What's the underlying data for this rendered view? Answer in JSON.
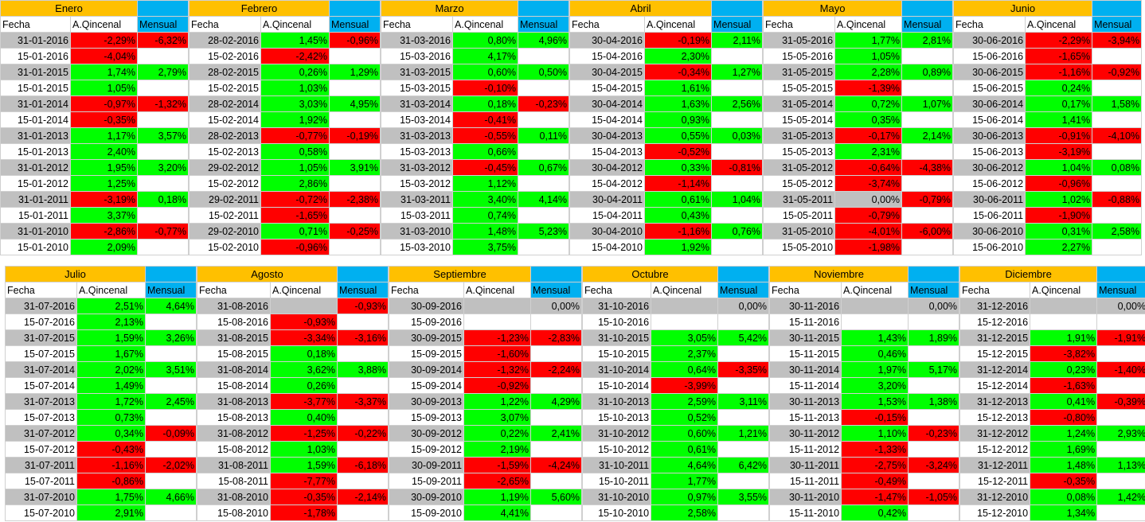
{
  "headers": {
    "fecha": "Fecha",
    "quincenal": "A.Qincenal",
    "mensual": "Mensual"
  },
  "rows": [
    [
      {
        "name": "Enero",
        "rows": [
          [
            "31-01-2016",
            "-2,29%",
            "-6,32%"
          ],
          [
            "15-01-2016",
            "-4,04%",
            ""
          ],
          [
            "31-01-2015",
            "1,74%",
            "2,79%"
          ],
          [
            "15-01-2015",
            "1,05%",
            ""
          ],
          [
            "31-01-2014",
            "-0,97%",
            "-1,32%"
          ],
          [
            "15-01-2014",
            "-0,35%",
            ""
          ],
          [
            "31-01-2013",
            "1,17%",
            "3,57%"
          ],
          [
            "15-01-2013",
            "2,40%",
            ""
          ],
          [
            "31-01-2012",
            "1,95%",
            "3,20%"
          ],
          [
            "15-01-2012",
            "1,25%",
            ""
          ],
          [
            "31-01-2011",
            "-3,19%",
            "0,18%"
          ],
          [
            "15-01-2011",
            "3,37%",
            ""
          ],
          [
            "31-01-2010",
            "-2,86%",
            "-0,77%"
          ],
          [
            "15-01-2010",
            "2,09%",
            ""
          ]
        ]
      },
      {
        "name": "Febrero",
        "rows": [
          [
            "28-02-2016",
            "1,45%",
            "-0,96%"
          ],
          [
            "15-02-2016",
            "-2,42%",
            ""
          ],
          [
            "28-02-2015",
            "0,26%",
            "1,29%"
          ],
          [
            "15-02-2015",
            "1,03%",
            ""
          ],
          [
            "28-02-2014",
            "3,03%",
            "4,95%"
          ],
          [
            "15-02-2014",
            "1,92%",
            ""
          ],
          [
            "28-02-2013",
            "-0,77%",
            "-0,19%"
          ],
          [
            "15-02-2013",
            "0,58%",
            ""
          ],
          [
            "29-02-2012",
            "1,05%",
            "3,91%"
          ],
          [
            "15-02-2012",
            "2,86%",
            ""
          ],
          [
            "29-02-2011",
            "-0,72%",
            "-2,38%"
          ],
          [
            "15-02-2011",
            "-1,65%",
            ""
          ],
          [
            "29-02-2010",
            "0,71%",
            "-0,25%"
          ],
          [
            "15-02-2010",
            "-0,96%",
            ""
          ]
        ]
      },
      {
        "name": "Marzo",
        "rows": [
          [
            "31-03-2016",
            "0,80%",
            "4,96%"
          ],
          [
            "15-03-2016",
            "4,17%",
            ""
          ],
          [
            "31-03-2015",
            "0,60%",
            "0,50%"
          ],
          [
            "15-03-2015",
            "-0,10%",
            ""
          ],
          [
            "31-03-2014",
            "0,18%",
            "-0,23%"
          ],
          [
            "15-03-2014",
            "-0,41%",
            ""
          ],
          [
            "31-03-2013",
            "-0,55%",
            "0,11%"
          ],
          [
            "15-03-2013",
            "0,66%",
            ""
          ],
          [
            "31-03-2012",
            "-0,45%",
            "0,67%"
          ],
          [
            "15-03-2012",
            "1,12%",
            ""
          ],
          [
            "31-03-2011",
            "3,40%",
            "4,14%"
          ],
          [
            "15-03-2011",
            "0,74%",
            ""
          ],
          [
            "31-03-2010",
            "1,48%",
            "5,23%"
          ],
          [
            "15-03-2010",
            "3,75%",
            ""
          ]
        ]
      },
      {
        "name": "Abril",
        "rows": [
          [
            "30-04-2016",
            "-0,19%",
            "2,11%"
          ],
          [
            "15-04-2016",
            "2,30%",
            ""
          ],
          [
            "30-04-2015",
            "-0,34%",
            "1,27%"
          ],
          [
            "15-04-2015",
            "1,61%",
            ""
          ],
          [
            "30-04-2014",
            "1,63%",
            "2,56%"
          ],
          [
            "15-04-2014",
            "0,93%",
            ""
          ],
          [
            "30-04-2013",
            "0,55%",
            "0,03%"
          ],
          [
            "15-04-2013",
            "-0,52%",
            ""
          ],
          [
            "30-04-2012",
            "0,33%",
            "-0,81%"
          ],
          [
            "15-04-2012",
            "-1,14%",
            ""
          ],
          [
            "30-04-2011",
            "0,61%",
            "1,04%"
          ],
          [
            "15-04-2011",
            "0,43%",
            ""
          ],
          [
            "30-04-2010",
            "-1,16%",
            "0,76%"
          ],
          [
            "15-04-2010",
            "1,92%",
            ""
          ]
        ]
      },
      {
        "name": "Mayo",
        "rows": [
          [
            "31-05-2016",
            "1,77%",
            "2,81%"
          ],
          [
            "15-05-2016",
            "1,05%",
            ""
          ],
          [
            "31-05-2015",
            "2,28%",
            "0,89%"
          ],
          [
            "15-05-2015",
            "-1,39%",
            ""
          ],
          [
            "31-05-2014",
            "0,72%",
            "1,07%"
          ],
          [
            "15-05-2014",
            "0,35%",
            ""
          ],
          [
            "31-05-2013",
            "-0,17%",
            "2,14%"
          ],
          [
            "15-05-2013",
            "2,31%",
            ""
          ],
          [
            "31-05-2012",
            "-0,64%",
            "-4,38%"
          ],
          [
            "15-05-2012",
            "-3,74%",
            ""
          ],
          [
            "31-05-2011",
            "0,00%",
            "-0,79%"
          ],
          [
            "15-05-2011",
            "-0,79%",
            ""
          ],
          [
            "31-05-2010",
            "-4,01%",
            "-6,00%"
          ],
          [
            "15-05-2010",
            "-1,98%",
            ""
          ]
        ]
      },
      {
        "name": "Junio",
        "rows": [
          [
            "30-06-2016",
            "-2,29%",
            "-3,94%"
          ],
          [
            "15-06-2016",
            "-1,65%",
            ""
          ],
          [
            "30-06-2015",
            "-1,16%",
            "-0,92%"
          ],
          [
            "15-06-2015",
            "0,24%",
            ""
          ],
          [
            "30-06-2014",
            "0,17%",
            "1,58%"
          ],
          [
            "15-06-2014",
            "1,41%",
            ""
          ],
          [
            "30-06-2013",
            "-0,91%",
            "-4,10%"
          ],
          [
            "15-06-2013",
            "-3,19%",
            ""
          ],
          [
            "30-06-2012",
            "1,04%",
            "0,08%"
          ],
          [
            "15-06-2012",
            "-0,96%",
            ""
          ],
          [
            "30-06-2011",
            "1,02%",
            "-0,88%"
          ],
          [
            "15-06-2011",
            "-1,90%",
            ""
          ],
          [
            "30-06-2010",
            "0,31%",
            "2,58%"
          ],
          [
            "15-06-2010",
            "2,27%",
            ""
          ]
        ]
      }
    ],
    [
      {
        "name": "Julio",
        "rows": [
          [
            "31-07-2016",
            "2,51%",
            "4,64%"
          ],
          [
            "15-07-2016",
            "2,13%",
            ""
          ],
          [
            "31-07-2015",
            "1,59%",
            "3,26%"
          ],
          [
            "15-07-2015",
            "1,67%",
            ""
          ],
          [
            "31-07-2014",
            "2,02%",
            "3,51%"
          ],
          [
            "15-07-2014",
            "1,49%",
            ""
          ],
          [
            "31-07-2013",
            "1,72%",
            "2,45%"
          ],
          [
            "15-07-2013",
            "0,73%",
            ""
          ],
          [
            "31-07-2012",
            "0,34%",
            "-0,09%"
          ],
          [
            "15-07-2012",
            "-0,43%",
            ""
          ],
          [
            "31-07-2011",
            "-1,16%",
            "-2,02%"
          ],
          [
            "15-07-2011",
            "-0,86%",
            ""
          ],
          [
            "31-07-2010",
            "1,75%",
            "4,66%"
          ],
          [
            "15-07-2010",
            "2,91%",
            ""
          ]
        ]
      },
      {
        "name": "Agosto",
        "rows": [
          [
            "31-08-2016",
            "",
            "-0,93%"
          ],
          [
            "15-08-2016",
            "-0,93%",
            ""
          ],
          [
            "31-08-2015",
            "-3,34%",
            "-3,16%"
          ],
          [
            "15-08-2015",
            "0,18%",
            ""
          ],
          [
            "31-08-2014",
            "3,62%",
            "3,88%"
          ],
          [
            "15-08-2014",
            "0,26%",
            ""
          ],
          [
            "31-08-2013",
            "-3,77%",
            "-3,37%"
          ],
          [
            "15-08-2013",
            "0,40%",
            ""
          ],
          [
            "31-08-2012",
            "-1,25%",
            "-0,22%"
          ],
          [
            "15-08-2012",
            "1,03%",
            ""
          ],
          [
            "31-08-2011",
            "1,59%",
            "-6,18%"
          ],
          [
            "15-08-2011",
            "-7,77%",
            ""
          ],
          [
            "31-08-2010",
            "-0,35%",
            "-2,14%"
          ],
          [
            "15-08-2010",
            "-1,78%",
            ""
          ]
        ]
      },
      {
        "name": "Septiembre",
        "rows": [
          [
            "30-09-2016",
            "",
            "0,00%"
          ],
          [
            "15-09-2016",
            "",
            ""
          ],
          [
            "30-09-2015",
            "-1,23%",
            "-2,83%"
          ],
          [
            "15-09-2015",
            "-1,60%",
            ""
          ],
          [
            "30-09-2014",
            "-1,32%",
            "-2,24%"
          ],
          [
            "15-09-2014",
            "-0,92%",
            ""
          ],
          [
            "30-09-2013",
            "1,22%",
            "4,29%"
          ],
          [
            "15-09-2013",
            "3,07%",
            ""
          ],
          [
            "30-09-2012",
            "0,22%",
            "2,41%"
          ],
          [
            "15-09-2012",
            "2,19%",
            ""
          ],
          [
            "30-09-2011",
            "-1,59%",
            "-4,24%"
          ],
          [
            "15-09-2011",
            "-2,65%",
            ""
          ],
          [
            "30-09-2010",
            "1,19%",
            "5,60%"
          ],
          [
            "15-09-2010",
            "4,41%",
            ""
          ]
        ]
      },
      {
        "name": "Octubre",
        "rows": [
          [
            "31-10-2016",
            "",
            "0,00%"
          ],
          [
            "15-10-2016",
            "",
            ""
          ],
          [
            "31-10-2015",
            "3,05%",
            "5,42%"
          ],
          [
            "15-10-2015",
            "2,37%",
            ""
          ],
          [
            "31-10-2014",
            "0,64%",
            "-3,35%"
          ],
          [
            "15-10-2014",
            "-3,99%",
            ""
          ],
          [
            "31-10-2013",
            "2,59%",
            "3,11%"
          ],
          [
            "15-10-2013",
            "0,52%",
            ""
          ],
          [
            "31-10-2012",
            "0,60%",
            "1,21%"
          ],
          [
            "15-10-2012",
            "0,61%",
            ""
          ],
          [
            "31-10-2011",
            "4,64%",
            "6,42%"
          ],
          [
            "15-10-2011",
            "1,77%",
            ""
          ],
          [
            "31-10-2010",
            "0,97%",
            "3,55%"
          ],
          [
            "15-10-2010",
            "2,58%",
            ""
          ]
        ]
      },
      {
        "name": "Noviembre",
        "rows": [
          [
            "30-11-2016",
            "",
            "0,00%"
          ],
          [
            "15-11-2016",
            "",
            ""
          ],
          [
            "30-11-2015",
            "1,43%",
            "1,89%"
          ],
          [
            "15-11-2015",
            "0,46%",
            ""
          ],
          [
            "30-11-2014",
            "1,97%",
            "5,17%"
          ],
          [
            "15-11-2014",
            "3,20%",
            ""
          ],
          [
            "30-11-2013",
            "1,53%",
            "1,38%"
          ],
          [
            "15-11-2013",
            "-0,15%",
            ""
          ],
          [
            "30-11-2012",
            "1,10%",
            "-0,23%"
          ],
          [
            "15-11-2012",
            "-1,33%",
            ""
          ],
          [
            "30-11-2011",
            "-2,75%",
            "-3,24%"
          ],
          [
            "15-11-2011",
            "-0,49%",
            ""
          ],
          [
            "30-11-2010",
            "-1,47%",
            "-1,05%"
          ],
          [
            "15-11-2010",
            "0,42%",
            ""
          ]
        ]
      },
      {
        "name": "Diciembre",
        "rows": [
          [
            "31-12-2016",
            "",
            "0,00%"
          ],
          [
            "15-12-2016",
            "",
            ""
          ],
          [
            "31-12-2015",
            "1,91%",
            "-1,91%"
          ],
          [
            "15-12-2015",
            "-3,82%",
            ""
          ],
          [
            "31-12-2014",
            "0,23%",
            "-1,40%"
          ],
          [
            "15-12-2014",
            "-1,63%",
            ""
          ],
          [
            "31-12-2013",
            "0,41%",
            "-0,39%"
          ],
          [
            "15-12-2013",
            "-0,80%",
            ""
          ],
          [
            "31-12-2012",
            "1,24%",
            "2,93%"
          ],
          [
            "15-12-2012",
            "1,69%",
            ""
          ],
          [
            "31-12-2011",
            "1,48%",
            "1,13%"
          ],
          [
            "15-12-2011",
            "-0,35%",
            ""
          ],
          [
            "31-12-2010",
            "0,08%",
            "1,42%"
          ],
          [
            "15-12-2010",
            "1,34%",
            ""
          ]
        ]
      }
    ]
  ]
}
